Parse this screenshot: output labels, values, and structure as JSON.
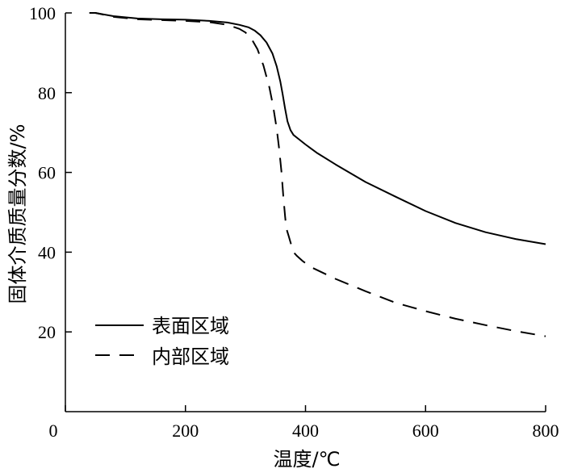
{
  "chart_data": {
    "type": "line",
    "title": "",
    "xlabel": "温度/℃",
    "ylabel": "固体介质质量分数/%",
    "xlim": [
      0,
      800
    ],
    "ylim": [
      0,
      100
    ],
    "xticks": [
      "0",
      "200",
      "400",
      "600",
      "800"
    ],
    "yticks": [
      "20",
      "40",
      "60",
      "80",
      "100"
    ],
    "grid": false,
    "legend_position": "bottom-left",
    "series": [
      {
        "name": "表面区域",
        "style": "solid",
        "color": "#000000",
        "x": [
          40,
          50,
          80,
          120,
          160,
          200,
          240,
          270,
          290,
          305,
          315,
          325,
          335,
          345,
          352,
          358,
          362,
          366,
          370,
          375,
          380,
          390,
          400,
          420,
          450,
          500,
          550,
          600,
          650,
          700,
          750,
          800
        ],
        "y": [
          100,
          100,
          99.2,
          98.6,
          98.4,
          98.3,
          98.0,
          97.6,
          97.0,
          96.4,
          95.6,
          94.4,
          92.6,
          89.8,
          86.6,
          82.8,
          79.6,
          76.0,
          72.8,
          70.6,
          69.4,
          68.2,
          67.0,
          64.8,
          62.0,
          57.6,
          53.9,
          50.3,
          47.3,
          45.0,
          43.3,
          42.0
        ]
      },
      {
        "name": "内部区域",
        "style": "dashed",
        "color": "#000000",
        "x": [
          40,
          50,
          80,
          120,
          160,
          200,
          240,
          270,
          290,
          300,
          310,
          320,
          330,
          340,
          346,
          352,
          356,
          360,
          363,
          366,
          368,
          372,
          376,
          380,
          386,
          395,
          410,
          450,
          500,
          550,
          600,
          650,
          700,
          750,
          800
        ],
        "y": [
          100,
          100,
          99.0,
          98.4,
          98.2,
          98.0,
          97.7,
          97.0,
          96.0,
          95.1,
          93.5,
          90.9,
          86.8,
          81.2,
          76.7,
          71.0,
          66.0,
          60.0,
          54.0,
          49.0,
          46.0,
          44.0,
          42.0,
          40.0,
          39.0,
          37.8,
          36.2,
          33.3,
          30.2,
          27.3,
          25.2,
          23.3,
          21.7,
          20.2,
          18.9
        ]
      }
    ]
  }
}
